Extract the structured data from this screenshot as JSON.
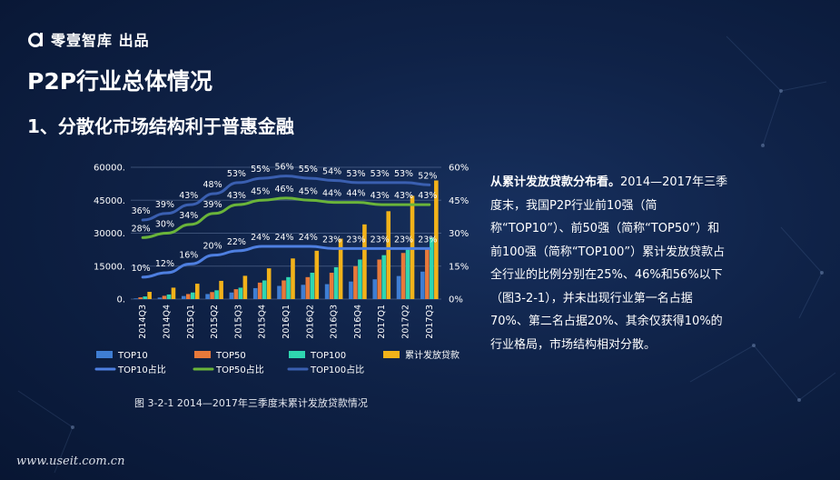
{
  "brand": {
    "name": "零壹智库 出品",
    "logo_icon": "a-logo-icon"
  },
  "title": "P2P行业总体情况",
  "subtitle": "1、分散化市场结构利于普惠金融",
  "caption": "图 3-2-1  2014—2017年三季度末累计发放贷款情况",
  "desc": {
    "lead": "从累计发放贷款分布看。",
    "body": "2014—2017年三季度末，我国P2P行业前10强（简称“TOP10”）、前50强（简称“TOP50”）和前100强（简称“TOP100”）累计发放贷款占全行业的比例分别在25%、46%和56%以下（图3-2-1），并未出现行业第一名占据70%、第二名占据20%、其余仅获得10%的行业格局，市场结构相对分散。"
  },
  "footer": "www.useit.com.cn",
  "colors": {
    "top10": "#3f7ed3",
    "top50": "#e8793a",
    "top100": "#2fd6b0",
    "total": "#f2b21a",
    "top10_pct": "#4e7fe0",
    "top50_pct": "#6ab43a",
    "top100_pct": "#3a5fb0"
  },
  "chart_data": {
    "type": "bar",
    "categories": [
      "2014Q3",
      "2014Q4",
      "2015Q1",
      "2015Q2",
      "2015Q3",
      "2015Q4",
      "2016Q1",
      "2016Q2",
      "2016Q3",
      "2016Q4",
      "2017Q1",
      "2017Q2",
      "2017Q3"
    ],
    "series": [
      {
        "name": "TOP10",
        "type": "bar",
        "axis": "left",
        "values": [
          300,
          700,
          1400,
          2300,
          3000,
          5000,
          6000,
          6500,
          6800,
          8000,
          9000,
          10500,
          12500
        ]
      },
      {
        "name": "TOP50",
        "type": "bar",
        "axis": "left",
        "values": [
          800,
          1500,
          2300,
          3200,
          4500,
          7500,
          8500,
          10000,
          12000,
          15000,
          18000,
          21000,
          23500
        ]
      },
      {
        "name": "TOP100",
        "type": "bar",
        "axis": "left",
        "values": [
          1200,
          2100,
          3000,
          4000,
          5200,
          8500,
          10000,
          12000,
          14500,
          18000,
          20000,
          23000,
          28000
        ]
      },
      {
        "name": "累计发放贷款",
        "type": "bar",
        "axis": "left",
        "values": [
          3300,
          5200,
          7000,
          8300,
          10600,
          14000,
          18500,
          22000,
          27500,
          34000,
          40000,
          47000,
          54000
        ]
      },
      {
        "name": "TOP10占比",
        "type": "line",
        "axis": "right",
        "values": [
          10,
          12,
          16,
          20,
          22,
          24,
          24,
          24,
          23,
          23,
          23,
          23,
          23
        ]
      },
      {
        "name": "TOP50占比",
        "type": "line",
        "axis": "right",
        "values": [
          28,
          30,
          34,
          39,
          43,
          45,
          46,
          45,
          44,
          44,
          43,
          43,
          43
        ]
      },
      {
        "name": "TOP100占比",
        "type": "line",
        "axis": "right",
        "values": [
          36,
          39,
          43,
          48,
          53,
          55,
          56,
          55,
          54,
          53,
          53,
          53,
          52
        ]
      }
    ],
    "y_left": {
      "ticks": [
        "0.",
        "15000.",
        "30000.",
        "45000.",
        "60000."
      ],
      "range": [
        0,
        60000
      ]
    },
    "y_right": {
      "ticks": [
        "0%",
        "15%",
        "30%",
        "45%",
        "60%"
      ],
      "range": [
        0,
        60
      ]
    },
    "grid": true,
    "legend_position": "bottom"
  }
}
